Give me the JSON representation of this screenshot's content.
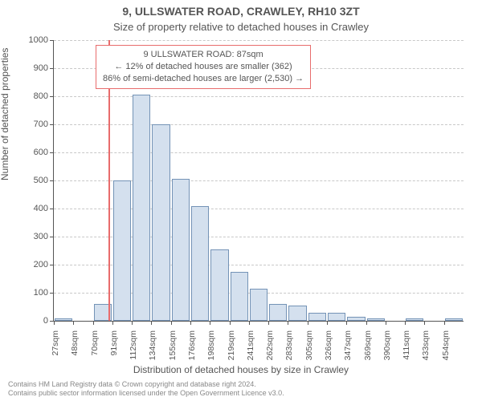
{
  "title": "9, ULLSWATER ROAD, CRAWLEY, RH10 3ZT",
  "subtitle": "Size of property relative to detached houses in Crawley",
  "ylabel": "Number of detached properties",
  "xlabel": "Distribution of detached houses by size in Crawley",
  "chart": {
    "type": "histogram",
    "background_color": "#ffffff",
    "grid_color": "#c8c8c8",
    "axis_color": "#555555",
    "bar_fill": "#d4e0ee",
    "bar_border": "#7493b6",
    "marker_color": "#e86c6c",
    "ylim": [
      0,
      1000
    ],
    "ytick_step": 100,
    "yticks": [
      0,
      100,
      200,
      300,
      400,
      500,
      600,
      700,
      800,
      900,
      1000
    ],
    "n_bars": 21,
    "values": [
      10,
      0,
      60,
      500,
      805,
      700,
      505,
      410,
      255,
      175,
      115,
      60,
      55,
      30,
      30,
      15,
      8,
      0,
      10,
      0,
      8
    ],
    "xtick_labels": [
      "27sqm",
      "48sqm",
      "70sqm",
      "91sqm",
      "112sqm",
      "134sqm",
      "155sqm",
      "176sqm",
      "198sqm",
      "219sqm",
      "241sqm",
      "262sqm",
      "283sqm",
      "305sqm",
      "326sqm",
      "347sqm",
      "369sqm",
      "390sqm",
      "411sqm",
      "433sqm",
      "454sqm"
    ],
    "marker_bar_index": 3,
    "marker_value": 87
  },
  "info_box": {
    "line1": "9 ULLSWATER ROAD: 87sqm",
    "line2": "← 12% of detached houses are smaller (362)",
    "line3": "86% of semi-detached houses are larger (2,530) →"
  },
  "attribution": {
    "line1": "Contains HM Land Registry data © Crown copyright and database right 2024.",
    "line2": "Contains public sector information licensed under the Open Government Licence v3.0."
  }
}
